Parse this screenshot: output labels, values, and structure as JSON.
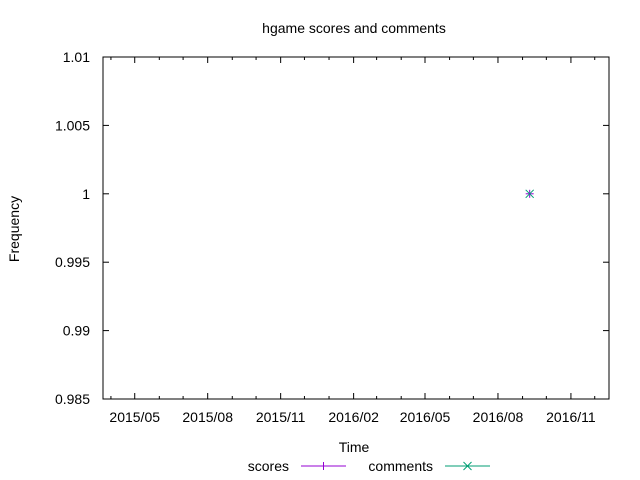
{
  "chart_data": {
    "type": "scatter",
    "title": "hgame scores and comments",
    "xlabel": "Time",
    "ylabel": "Frequency",
    "x_ticks": [
      "2015/05",
      "2015/08",
      "2015/11",
      "2016/02",
      "2016/05",
      "2016/08",
      "2016/11"
    ],
    "y_ticks": [
      "1.01",
      "1.005",
      "1",
      "0.995",
      "0.99",
      "0.985"
    ],
    "ylim": [
      0.985,
      1.01
    ],
    "xlim": [
      "2015-03-22",
      "2016-12-19"
    ],
    "grid": false,
    "legend_position": "bottom-center",
    "series": [
      {
        "name": "scores",
        "color": "#9400d3",
        "marker": "plus",
        "points": [
          {
            "x": "2016-09-10",
            "y": 1
          }
        ]
      },
      {
        "name": "comments",
        "color": "#009e73",
        "marker": "cross",
        "points": [
          {
            "x": "2016-09-10",
            "y": 1
          }
        ]
      }
    ]
  }
}
